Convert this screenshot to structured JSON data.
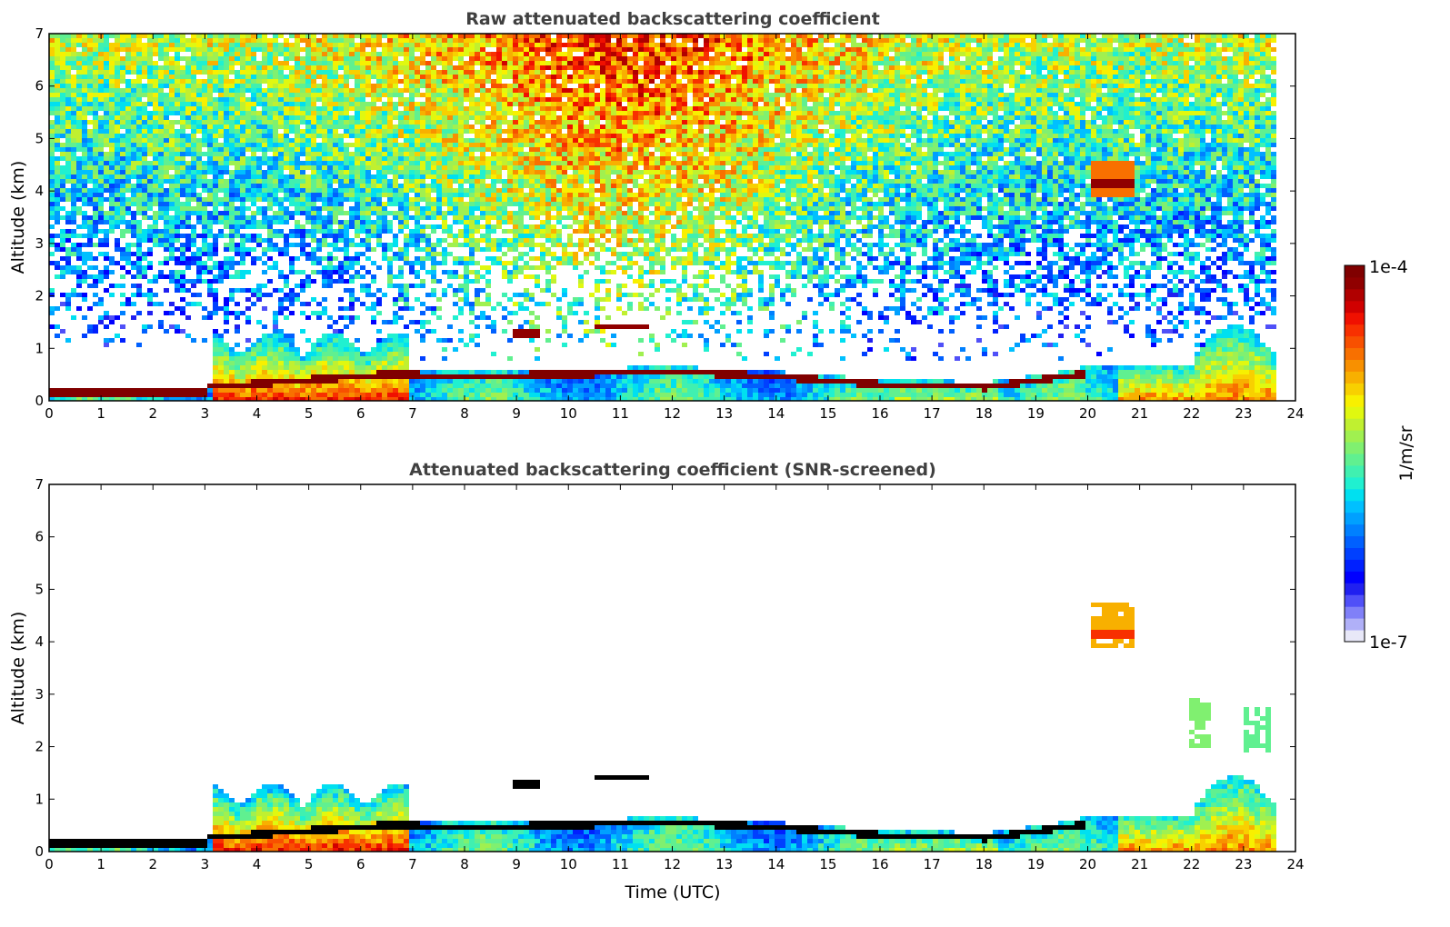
{
  "chart_data": [
    {
      "type": "heatmap",
      "title": "Raw attenuated backscattering coefficient",
      "xlabel": "",
      "ylabel": "Altitude (km)",
      "xlim": [
        0,
        24
      ],
      "ylim": [
        0,
        7
      ],
      "data_end_hour": 23.6,
      "xticks": [
        "0",
        "1",
        "2",
        "3",
        "4",
        "5",
        "6",
        "7",
        "8",
        "9",
        "10",
        "11",
        "12",
        "13",
        "14",
        "15",
        "16",
        "17",
        "18",
        "19",
        "20",
        "21",
        "22",
        "23",
        "24"
      ],
      "yticks": [
        "0",
        "1",
        "2",
        "3",
        "4",
        "5",
        "6",
        "7"
      ],
      "features": {
        "surface_layer_top_km": 0.3,
        "boundary_layer_bursts": [
          [
            3.1,
            6.9,
            1.4
          ]
        ],
        "cloud_layer": [
          [
            0,
            0.2
          ],
          [
            3,
            0.3
          ],
          [
            6.5,
            0.55
          ],
          [
            8,
            0.5
          ],
          [
            10,
            0.55
          ],
          [
            12,
            0.6
          ],
          [
            14,
            0.5
          ],
          [
            16,
            0.35
          ],
          [
            18,
            0.3
          ],
          [
            19.8,
            0.55
          ]
        ],
        "elevated_layers": [
          [
            10.4,
            11.5,
            1.45
          ],
          [
            8.9,
            9.4,
            1.3
          ],
          [
            20,
            20.8,
            4.2
          ]
        ],
        "noise_level": "high"
      }
    },
    {
      "type": "heatmap",
      "title": "Attenuated backscattering coefficient (SNR-screened)",
      "xlabel": "Time (UTC)",
      "ylabel": "Altitude (km)",
      "xlim": [
        0,
        24
      ],
      "ylim": [
        0,
        7
      ],
      "data_end_hour": 23.6,
      "xticks": [
        "0",
        "1",
        "2",
        "3",
        "4",
        "5",
        "6",
        "7",
        "8",
        "9",
        "10",
        "11",
        "12",
        "13",
        "14",
        "15",
        "16",
        "17",
        "18",
        "19",
        "20",
        "21",
        "22",
        "23",
        "24"
      ],
      "yticks": [
        "0",
        "1",
        "2",
        "3",
        "4",
        "5",
        "6",
        "7"
      ],
      "features": {
        "noise_level": "screened"
      }
    }
  ],
  "colorbar": {
    "label": "1/m/sr",
    "max_label": "1e-4",
    "min_label": "1e-7",
    "range": [
      1e-07,
      0.0001
    ],
    "scale": "log",
    "colors": [
      "#e8e8f8",
      "#b0b0f8",
      "#8080f8",
      "#5050f8",
      "#2020f0",
      "#0000ff",
      "#0020ff",
      "#0040ff",
      "#0060ff",
      "#0080ff",
      "#00a0ff",
      "#00c0ff",
      "#00e0f0",
      "#20f0d0",
      "#40f0b0",
      "#60f090",
      "#80f070",
      "#a0f050",
      "#c0f030",
      "#e0f810",
      "#f8f000",
      "#f8d000",
      "#f8b000",
      "#f89000",
      "#f87000",
      "#f85000",
      "#f83000",
      "#f01000",
      "#d00000",
      "#b00000",
      "#900000",
      "#800000"
    ]
  }
}
